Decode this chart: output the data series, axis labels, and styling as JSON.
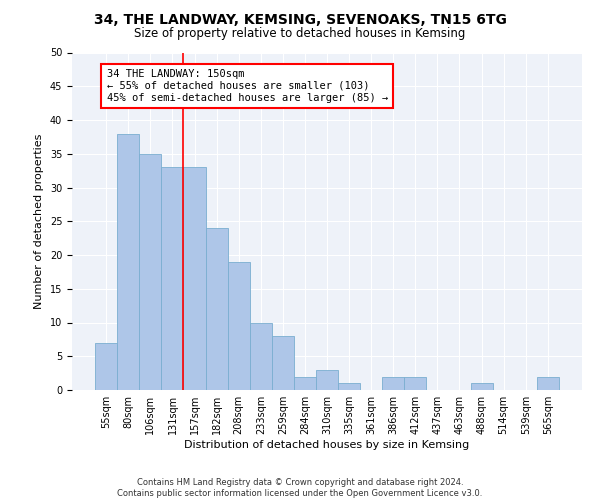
{
  "title": "34, THE LANDWAY, KEMSING, SEVENOAKS, TN15 6TG",
  "subtitle": "Size of property relative to detached houses in Kemsing",
  "xlabel": "Distribution of detached houses by size in Kemsing",
  "ylabel": "Number of detached properties",
  "bar_labels": [
    "55sqm",
    "80sqm",
    "106sqm",
    "131sqm",
    "157sqm",
    "182sqm",
    "208sqm",
    "233sqm",
    "259sqm",
    "284sqm",
    "310sqm",
    "335sqm",
    "361sqm",
    "386sqm",
    "412sqm",
    "437sqm",
    "463sqm",
    "488sqm",
    "514sqm",
    "539sqm",
    "565sqm"
  ],
  "bar_values": [
    7,
    38,
    35,
    33,
    33,
    24,
    19,
    10,
    8,
    2,
    3,
    1,
    0,
    2,
    2,
    0,
    0,
    1,
    0,
    0,
    2
  ],
  "bar_color": "#aec6e8",
  "bar_edge_color": "#7aaed0",
  "annotation_text": "34 THE LANDWAY: 150sqm\n← 55% of detached houses are smaller (103)\n45% of semi-detached houses are larger (85) →",
  "annotation_box_color": "white",
  "annotation_box_edge_color": "red",
  "vline_color": "red",
  "vline_x": 3.5,
  "ylim": [
    0,
    50
  ],
  "yticks": [
    0,
    5,
    10,
    15,
    20,
    25,
    30,
    35,
    40,
    45,
    50
  ],
  "bg_color": "#eef2f9",
  "footer_line1": "Contains HM Land Registry data © Crown copyright and database right 2024.",
  "footer_line2": "Contains public sector information licensed under the Open Government Licence v3.0.",
  "title_fontsize": 10,
  "subtitle_fontsize": 8.5,
  "xlabel_fontsize": 8,
  "ylabel_fontsize": 8,
  "tick_fontsize": 7,
  "annot_fontsize": 7.5
}
